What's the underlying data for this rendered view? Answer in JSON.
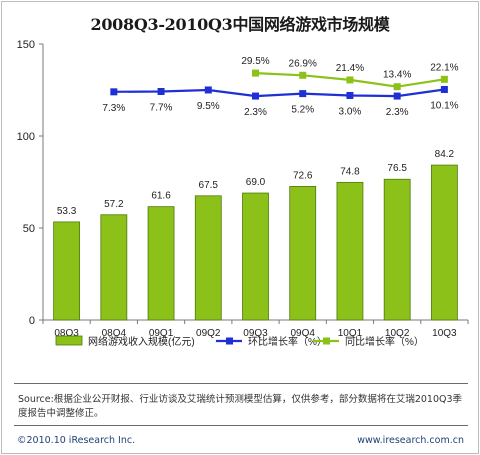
{
  "title": "2008Q3-2010Q3中国网络游戏市场规模",
  "chart_data": {
    "type": "bar",
    "categories": [
      "08Q3",
      "08Q4",
      "09Q1",
      "09Q2",
      "09Q3",
      "09Q4",
      "10Q1",
      "10Q2",
      "10Q3"
    ],
    "ylim": [
      0,
      150
    ],
    "yticks": [
      0,
      50,
      100,
      150
    ],
    "grid": false,
    "legend_placement": "bottom",
    "series": [
      {
        "name": "网络游戏收入规模(亿元)",
        "type": "bar",
        "color": "#8cc11a",
        "values": [
          53.3,
          57.2,
          61.6,
          67.5,
          69.0,
          72.6,
          74.8,
          76.5,
          84.2
        ],
        "labels": [
          "53.3",
          "57.2",
          "61.6",
          "67.5",
          "69.0",
          "72.6",
          "74.8",
          "76.5",
          "84.2"
        ]
      },
      {
        "name": "环比增长率（%）",
        "type": "line",
        "color": "#1f2fd6",
        "values": [
          null,
          7.3,
          7.7,
          9.5,
          2.3,
          5.2,
          3.0,
          2.3,
          10.1
        ],
        "labels": [
          null,
          "7.3%",
          "7.7%",
          "9.5%",
          "2.3%",
          "5.2%",
          "3.0%",
          "2.3%",
          "10.1%"
        ]
      },
      {
        "name": "同比增长率（%）",
        "type": "line",
        "color": "#8cc11a",
        "values": [
          null,
          null,
          null,
          null,
          29.5,
          26.9,
          21.4,
          13.4,
          22.1
        ],
        "labels": [
          null,
          null,
          null,
          null,
          "29.5%",
          "26.9%",
          "21.4%",
          "13.4%",
          "22.1%"
        ]
      }
    ]
  },
  "note": "Source:根据企业公开财报、行业访谈及艾瑞统计预测模型估算，仅供参考，部分数据将在艾瑞2010Q3季度报告中调整修正。",
  "footer": {
    "copyright": "©2010.10 iResearch Inc.",
    "website": "www.iresearch.com.cn"
  }
}
